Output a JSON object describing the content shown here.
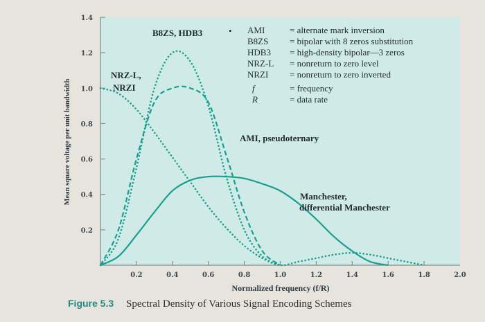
{
  "chart_data": {
    "type": "line",
    "caption_label": "Figure 5.3",
    "caption_text": "Spectral Density of Various Signal Encoding Schemes",
    "xlabel": "Normalized frequency (f/R)",
    "ylabel": "Mean square voltage per unit bandwidth",
    "xlim": [
      0,
      2.0
    ],
    "ylim": [
      0,
      1.4
    ],
    "x_ticks": [
      "0.2",
      "0.4",
      "0.6",
      "0.8",
      "1.0",
      "1.2",
      "1.4",
      "1.6",
      "1.8",
      "2.0"
    ],
    "y_ticks": [
      "0.2",
      "0.4",
      "0.6",
      "0.8",
      "1.0",
      "1.2",
      "1.4"
    ],
    "colors": {
      "plot_bg": "#cfeae7",
      "curve": "#1a9e90",
      "caption": "#1f8a84"
    },
    "series": [
      {
        "name": "NRZ-L, NRZI",
        "style": "dotted",
        "points": [
          [
            0.0,
            1.0
          ],
          [
            0.1,
            0.97
          ],
          [
            0.2,
            0.88
          ],
          [
            0.3,
            0.75
          ],
          [
            0.4,
            0.61
          ],
          [
            0.5,
            0.47
          ],
          [
            0.6,
            0.33
          ],
          [
            0.7,
            0.21
          ],
          [
            0.8,
            0.11
          ],
          [
            0.9,
            0.04
          ],
          [
            1.0,
            0.0
          ],
          [
            1.1,
            0.02
          ],
          [
            1.2,
            0.04
          ],
          [
            1.3,
            0.06
          ],
          [
            1.4,
            0.07
          ],
          [
            1.5,
            0.06
          ],
          [
            1.6,
            0.04
          ],
          [
            1.7,
            0.02
          ],
          [
            1.8,
            0.0
          ]
        ]
      },
      {
        "name": "B8ZS, HDB3",
        "style": "dotted",
        "points": [
          [
            0.0,
            0.0
          ],
          [
            0.1,
            0.15
          ],
          [
            0.2,
            0.55
          ],
          [
            0.3,
            1.0
          ],
          [
            0.4,
            1.2
          ],
          [
            0.5,
            1.15
          ],
          [
            0.6,
            0.9
          ],
          [
            0.7,
            0.5
          ],
          [
            0.8,
            0.2
          ],
          [
            0.9,
            0.05
          ],
          [
            1.0,
            0.0
          ]
        ]
      },
      {
        "name": "AMI, pseudoternary",
        "style": "dashed",
        "points": [
          [
            0.0,
            0.0
          ],
          [
            0.1,
            0.2
          ],
          [
            0.2,
            0.6
          ],
          [
            0.3,
            0.92
          ],
          [
            0.4,
            1.0
          ],
          [
            0.5,
            1.0
          ],
          [
            0.6,
            0.92
          ],
          [
            0.7,
            0.62
          ],
          [
            0.8,
            0.3
          ],
          [
            0.9,
            0.08
          ],
          [
            1.0,
            0.0
          ]
        ]
      },
      {
        "name": "Manchester, differential Manchester",
        "style": "solid",
        "points": [
          [
            0.0,
            0.0
          ],
          [
            0.1,
            0.05
          ],
          [
            0.2,
            0.17
          ],
          [
            0.3,
            0.3
          ],
          [
            0.4,
            0.42
          ],
          [
            0.5,
            0.48
          ],
          [
            0.6,
            0.5
          ],
          [
            0.7,
            0.5
          ],
          [
            0.8,
            0.49
          ],
          [
            0.9,
            0.46
          ],
          [
            1.0,
            0.42
          ],
          [
            1.1,
            0.35
          ],
          [
            1.2,
            0.26
          ],
          [
            1.3,
            0.16
          ],
          [
            1.4,
            0.08
          ],
          [
            1.5,
            0.02
          ],
          [
            1.6,
            0.0
          ]
        ]
      }
    ],
    "curve_labels": {
      "nrz": [
        "NRZ-L,",
        "NRZI"
      ],
      "b8zs": "B8ZS, HDB3",
      "ami": "AMI, pseudoternary",
      "manchester": [
        "Manchester,",
        "differential Manchester"
      ]
    },
    "legend": [
      {
        "abbr": "AMI",
        "def": "= alternate mark inversion"
      },
      {
        "abbr": "B8ZS",
        "def": "= bipolar with 8 zeros substitution"
      },
      {
        "abbr": "HDB3",
        "def": "= high-density bipolar—3 zeros"
      },
      {
        "abbr": "NRZ-L",
        "def": "= nonreturn to zero level"
      },
      {
        "abbr": "NRZI",
        "def": "= nonreturn to zero inverted"
      },
      {
        "abbr": "f",
        "def": "= frequency"
      },
      {
        "abbr": "R",
        "def": "= data rate"
      }
    ]
  }
}
